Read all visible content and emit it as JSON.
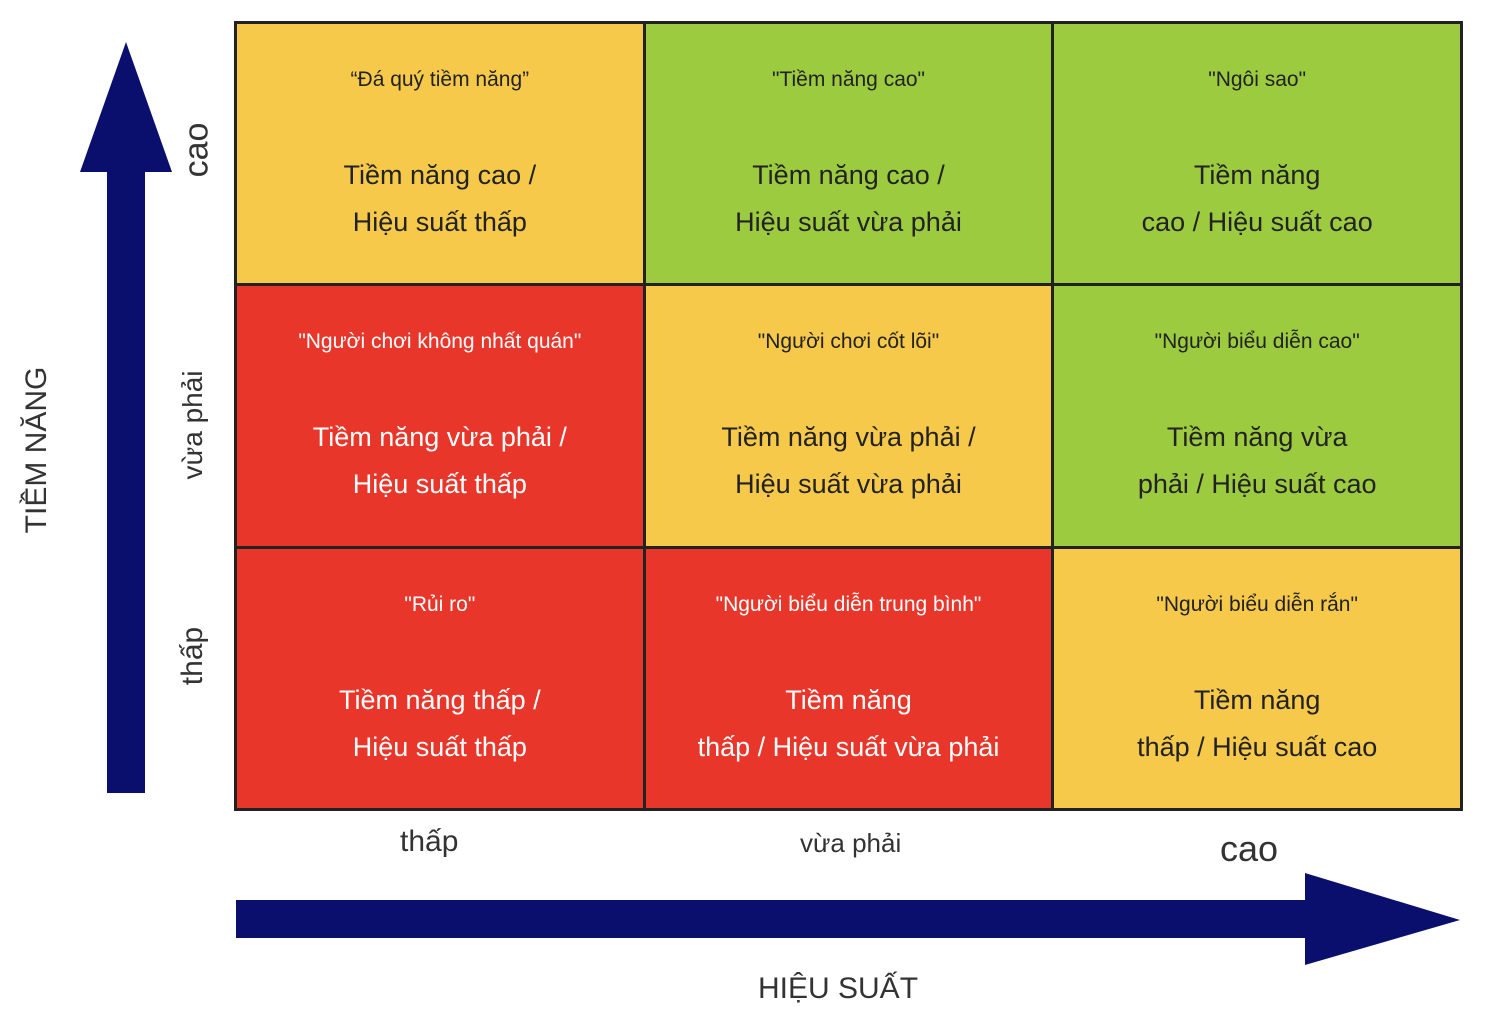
{
  "y_axis": {
    "title": "TIỀM NĂNG",
    "levels": [
      "cao",
      "vừa phải",
      "thấp"
    ]
  },
  "x_axis": {
    "title": "HIỆU SUẤT",
    "levels": [
      "thấp",
      "vừa phải",
      "cao"
    ]
  },
  "grid": {
    "rows": [
      [
        {
          "name": "“Đá quý tiềm năng”",
          "lines": [
            "Tiềm năng cao /",
            "Hiệu suất thấp"
          ],
          "color": "#f6c94a"
        },
        {
          "name": "\"Tiềm năng cao\"",
          "lines": [
            "Tiềm năng cao /",
            "Hiệu suất vừa phải"
          ],
          "color": "#9dcb3f"
        },
        {
          "name": "\"Ngôi sao\"",
          "lines": [
            "Tiềm năng",
            "cao / Hiệu suất cao"
          ],
          "color": "#9dcb3f"
        }
      ],
      [
        {
          "name": "\"Người chơi không nhất quán\"",
          "lines": [
            "Tiềm năng vừa phải /",
            "Hiệu suất thấp"
          ],
          "color": "#e8362a"
        },
        {
          "name": "\"Người chơi cốt lõi\"",
          "lines": [
            "Tiềm năng vừa phải /",
            "Hiệu suất vừa phải"
          ],
          "color": "#f6c94a"
        },
        {
          "name": "\"Người biểu diễn cao\"",
          "lines": [
            "Tiềm năng vừa",
            "phải / Hiệu suất cao"
          ],
          "color": "#9dcb3f"
        }
      ],
      [
        {
          "name": "\"Rủi ro\"",
          "lines": [
            "Tiềm năng thấp /",
            "Hiệu suất thấp"
          ],
          "color": "#e8362a"
        },
        {
          "name": "\"Người biểu diễn trung bình\"",
          "lines": [
            "Tiềm năng",
            "thấp / Hiệu suất vừa phải"
          ],
          "color": "#e8362a"
        },
        {
          "name": "\"Người biểu diễn rắn\"",
          "lines": [
            "Tiềm năng",
            "thấp / Hiệu suất cao"
          ],
          "color": "#f6c94a"
        }
      ]
    ]
  }
}
